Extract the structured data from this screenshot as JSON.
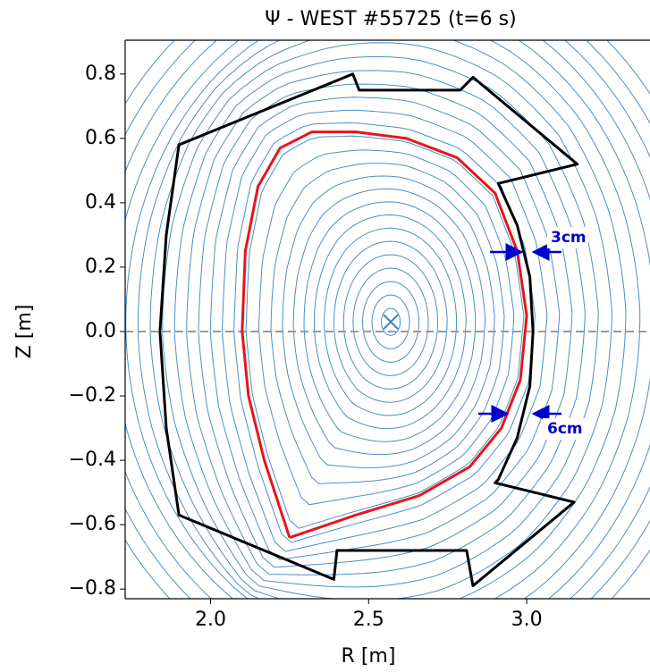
{
  "chart_data": {
    "type": "contour",
    "title": "Ψ - WEST #55725 (t=6 s)",
    "xlabel": "R [m]",
    "ylabel": "Z [m]",
    "xlim": [
      1.73,
      3.39
    ],
    "ylim": [
      -0.83,
      0.905
    ],
    "xticks": [
      {
        "value": 2.0,
        "label": "2.0"
      },
      {
        "value": 2.5,
        "label": "2.5"
      },
      {
        "value": 3.0,
        "label": "3.0"
      }
    ],
    "yticks": [
      0.8,
      0.6,
      0.4,
      0.2,
      {
        "value": 0,
        "label": "0.0"
      },
      {
        "value": -0.2,
        "label": "−0.2"
      },
      {
        "value": -0.4,
        "label": "−0.4"
      },
      {
        "value": -0.6,
        "label": "−0.6"
      },
      {
        "value": -0.8,
        "label": "−0.8"
      }
    ],
    "contour_color": "#4a8fc8",
    "separatrix": {
      "color": "#e8141c",
      "x": [
        2.25,
        2.17,
        2.12,
        2.1,
        2.11,
        2.15,
        2.22,
        2.32,
        2.46,
        2.62,
        2.78,
        2.9,
        2.97,
        3.0,
        2.98,
        2.92,
        2.82,
        2.66,
        2.46,
        2.25
      ],
      "y": [
        -0.64,
        -0.4,
        -0.2,
        0.0,
        0.25,
        0.45,
        0.57,
        0.62,
        0.62,
        0.6,
        0.54,
        0.43,
        0.25,
        0.05,
        -0.15,
        -0.3,
        -0.42,
        -0.51,
        -0.57,
        -0.64
      ]
    },
    "wall": {
      "color": "#000000",
      "x": [
        1.9,
        2.45,
        2.47,
        2.79,
        2.83,
        3.16,
        2.91,
        2.97,
        3.01,
        3.02,
        3.01,
        2.97,
        2.91,
        2.9,
        3.15,
        2.83,
        2.81,
        2.4,
        2.39,
        1.9,
        1.86,
        1.84,
        1.86
      ],
      "y": [
        0.58,
        0.8,
        0.75,
        0.75,
        0.79,
        0.52,
        0.46,
        0.33,
        0.17,
        0.0,
        -0.17,
        -0.33,
        -0.46,
        -0.47,
        -0.53,
        -0.79,
        -0.68,
        -0.68,
        -0.77,
        -0.57,
        -0.3,
        0.0,
        0.3
      ]
    },
    "magnetic_axis": {
      "x": 2.57,
      "y": 0.03,
      "color": "#3a7fc0"
    },
    "hlines": [
      0
    ],
    "annotations": [
      "3cm",
      "6cm"
    ]
  }
}
